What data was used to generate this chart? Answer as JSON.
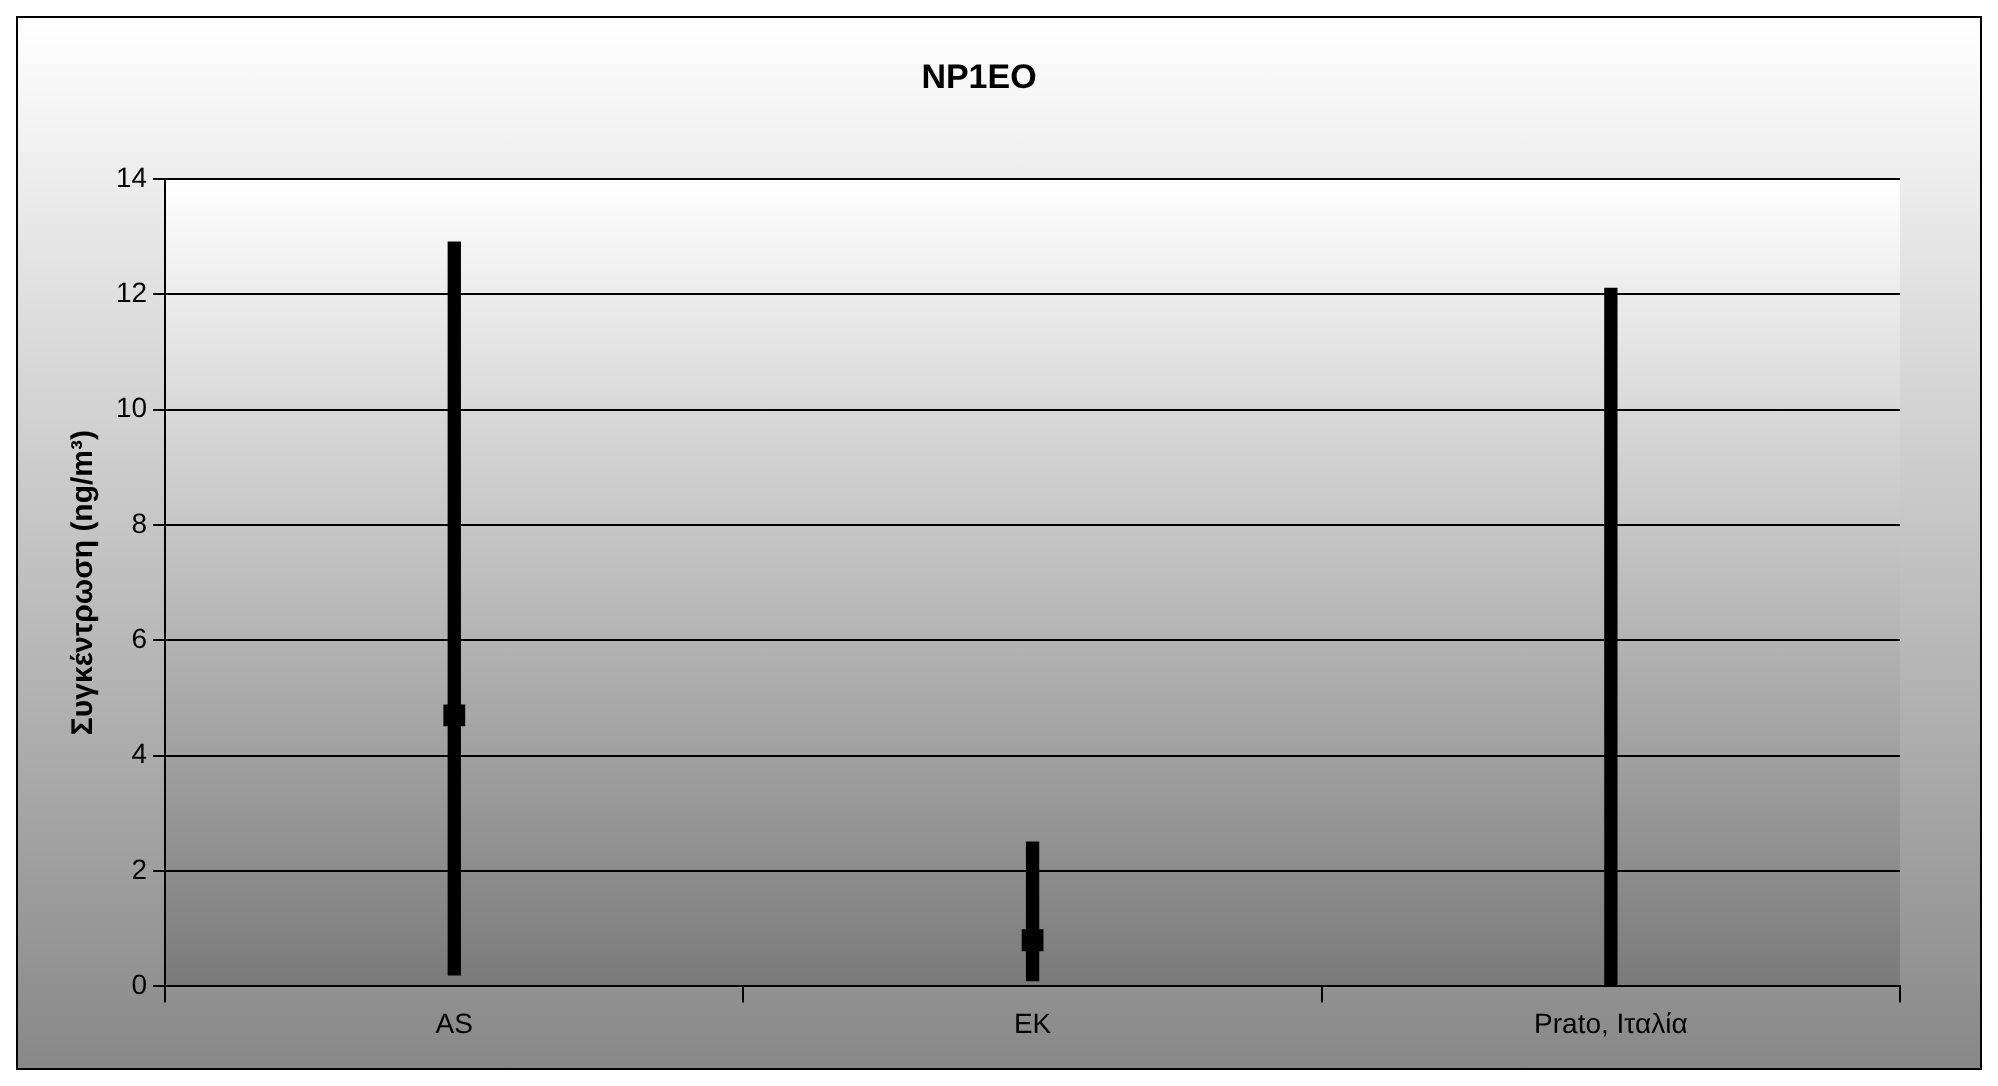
{
  "chart_data": {
    "type": "bar",
    "title": "NP1EO",
    "ylabel": "Συγκέντρωση (ng/m³)",
    "categories": [
      "AS",
      "EK",
      "Prato, Ιταλία"
    ],
    "series": [
      {
        "color": "#000000",
        "base": [
          0.2,
          0.1,
          0
        ],
        "values": [
          12.7,
          2.4,
          12.1
        ]
      },
      {
        "type": "scatter",
        "color": "#000000",
        "x": [
          "AS",
          "EK",
          "Prato, Ιταλία"
        ],
        "values": [
          4.7,
          0.8,
          null
        ],
        "marker": "square"
      }
    ],
    "ylim": [
      0,
      14
    ],
    "yticks": [
      0,
      2,
      4,
      6,
      8,
      10,
      12,
      14
    ],
    "grid": "y",
    "legend": false
  }
}
